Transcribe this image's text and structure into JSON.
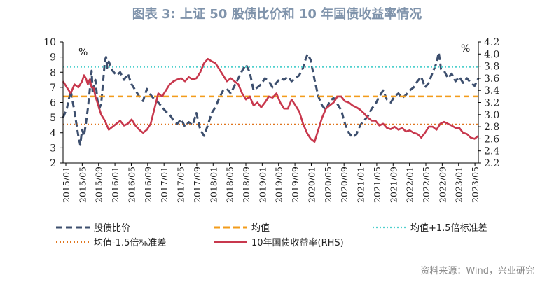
{
  "chart_data": {
    "type": "line",
    "title": "图表 3:  上证 50 股债比价和 10 年国债收益率情况",
    "left_axis_unit": "%",
    "right_axis_unit": "%",
    "left_ylim": [
      2,
      10
    ],
    "left_ticks": [
      "2",
      "3",
      "4",
      "5",
      "6",
      "7",
      "8",
      "9",
      "10"
    ],
    "right_ylim": [
      2.2,
      4.2
    ],
    "right_ticks": [
      "2.2",
      "2.4",
      "2.6",
      "2.8",
      "3.0",
      "3.2",
      "3.4",
      "3.6",
      "3.8",
      "4.0",
      "4.2"
    ],
    "x_ticks": [
      "2015/01",
      "2015/05",
      "2015/09",
      "2016/01",
      "2016/05",
      "2016/09",
      "2017/01",
      "2017/05",
      "2017/09",
      "2018/01",
      "2018/05",
      "2018/09",
      "2019/01",
      "2019/05",
      "2019/09",
      "2020/01",
      "2020/05",
      "2020/09",
      "2021/01",
      "2021/05",
      "2021/09",
      "2022/01",
      "2022/05",
      "2022/09",
      "2023/01",
      "2023/05"
    ],
    "source": "资料来源：Wind，兴业研究",
    "series": [
      {
        "name": "股债比价",
        "axis": "left",
        "style": "dashed",
        "color": "#3d4f6e",
        "points": [
          [
            0,
            5.0
          ],
          [
            1,
            5.6
          ],
          [
            2,
            6.8
          ],
          [
            3,
            5.4
          ],
          [
            4,
            3.8
          ],
          [
            4.5,
            3.2
          ],
          [
            5,
            4.2
          ],
          [
            5.5,
            3.8
          ],
          [
            6,
            4.6
          ],
          [
            6.5,
            5.6
          ],
          [
            7,
            6.8
          ],
          [
            7.5,
            8.1
          ],
          [
            7.8,
            6.6
          ],
          [
            8,
            7.0
          ],
          [
            8.5,
            7.5
          ],
          [
            9,
            6.2
          ],
          [
            9.5,
            5.6
          ],
          [
            10,
            5.9
          ],
          [
            10.5,
            7.3
          ],
          [
            11,
            8.8
          ],
          [
            11.3,
            9.0
          ],
          [
            11.6,
            8.3
          ],
          [
            12,
            8.7
          ],
          [
            13,
            8.1
          ],
          [
            14,
            7.8
          ],
          [
            15,
            8.0
          ],
          [
            16,
            7.5
          ],
          [
            17,
            7.9
          ],
          [
            18,
            7.2
          ],
          [
            19,
            6.8
          ],
          [
            20,
            6.4
          ],
          [
            21,
            6.1
          ],
          [
            22,
            6.9
          ],
          [
            23,
            6.5
          ],
          [
            24,
            6.2
          ],
          [
            25,
            6.0
          ],
          [
            26,
            5.7
          ],
          [
            27,
            5.4
          ],
          [
            28,
            5.2
          ],
          [
            29,
            4.8
          ],
          [
            30,
            4.6
          ],
          [
            31,
            4.9
          ],
          [
            32,
            4.4
          ],
          [
            33,
            4.7
          ],
          [
            34,
            4.5
          ],
          [
            35,
            5.3
          ],
          [
            36,
            4.2
          ],
          [
            37,
            3.8
          ],
          [
            38,
            4.5
          ],
          [
            39,
            5.3
          ],
          [
            40,
            5.7
          ],
          [
            41,
            6.3
          ],
          [
            42,
            6.8
          ],
          [
            43,
            6.9
          ],
          [
            44,
            6.6
          ],
          [
            45,
            7.1
          ],
          [
            46,
            7.6
          ],
          [
            47,
            8.1
          ],
          [
            48,
            8.5
          ],
          [
            49,
            8.0
          ],
          [
            50,
            6.8
          ],
          [
            51,
            7.0
          ],
          [
            52,
            7.2
          ],
          [
            53,
            7.6
          ],
          [
            54,
            7.4
          ],
          [
            55,
            7.0
          ],
          [
            56,
            7.3
          ],
          [
            57,
            7.6
          ],
          [
            58,
            7.5
          ],
          [
            59,
            7.7
          ],
          [
            60,
            7.4
          ],
          [
            61,
            7.6
          ],
          [
            62,
            7.8
          ],
          [
            63,
            8.3
          ],
          [
            63.7,
            8.9
          ],
          [
            64.2,
            9.2
          ],
          [
            65,
            8.8
          ],
          [
            66,
            7.5
          ],
          [
            67,
            6.4
          ],
          [
            68,
            5.8
          ],
          [
            69,
            5.5
          ],
          [
            70,
            6.1
          ],
          [
            71,
            6.3
          ],
          [
            72,
            5.9
          ],
          [
            73,
            5.5
          ],
          [
            74,
            4.6
          ],
          [
            75,
            4.0
          ],
          [
            76,
            3.7
          ],
          [
            77,
            3.9
          ],
          [
            78,
            4.5
          ],
          [
            79,
            4.8
          ],
          [
            80,
            5.1
          ],
          [
            81,
            5.6
          ],
          [
            82,
            5.9
          ],
          [
            83,
            6.4
          ],
          [
            84,
            6.8
          ],
          [
            85,
            6.2
          ],
          [
            86,
            6.0
          ],
          [
            87,
            6.4
          ],
          [
            88,
            6.6
          ],
          [
            89,
            6.3
          ],
          [
            90,
            6.5
          ],
          [
            91,
            6.8
          ],
          [
            92,
            7.0
          ],
          [
            93,
            7.4
          ],
          [
            94,
            7.7
          ],
          [
            95,
            7.0
          ],
          [
            96,
            7.3
          ],
          [
            97,
            8.0
          ],
          [
            98,
            8.6
          ],
          [
            98.6,
            9.3
          ],
          [
            99.2,
            8.2
          ],
          [
            100,
            8.1
          ],
          [
            101,
            7.6
          ],
          [
            102,
            7.9
          ],
          [
            103,
            7.4
          ],
          [
            104,
            7.7
          ],
          [
            105,
            7.3
          ],
          [
            106,
            7.6
          ],
          [
            107,
            7.3
          ],
          [
            108,
            7.1
          ],
          [
            109,
            7.6
          ]
        ]
      },
      {
        "name": "均值",
        "axis": "left",
        "style": "dashed",
        "color": "#f39c1b",
        "constant": 6.4
      },
      {
        "name": "均值+1.5倍标准差",
        "axis": "left",
        "style": "dotted",
        "color": "#4fd0cd",
        "constant": 8.35
      },
      {
        "name": "均值-1.5倍标准差",
        "axis": "left",
        "style": "dotted",
        "color": "#e0761f",
        "constant": 4.55
      },
      {
        "name": "10年国债收益率(RHS)",
        "axis": "right",
        "style": "solid",
        "color": "#c8384d",
        "points": [
          [
            0,
            3.55
          ],
          [
            1,
            3.45
          ],
          [
            2,
            3.35
          ],
          [
            3,
            3.5
          ],
          [
            4,
            3.45
          ],
          [
            5,
            3.55
          ],
          [
            5.5,
            3.65
          ],
          [
            6,
            3.6
          ],
          [
            6.5,
            3.5
          ],
          [
            7,
            3.58
          ],
          [
            7.5,
            3.45
          ],
          [
            8,
            3.45
          ],
          [
            8.5,
            3.3
          ],
          [
            9,
            3.2
          ],
          [
            10,
            3.0
          ],
          [
            11,
            2.9
          ],
          [
            12,
            2.75
          ],
          [
            13,
            2.8
          ],
          [
            14,
            2.85
          ],
          [
            15,
            2.9
          ],
          [
            16,
            2.82
          ],
          [
            17,
            2.85
          ],
          [
            18,
            2.92
          ],
          [
            19,
            2.82
          ],
          [
            20,
            2.75
          ],
          [
            21,
            2.7
          ],
          [
            22,
            2.75
          ],
          [
            23,
            2.85
          ],
          [
            24,
            3.1
          ],
          [
            25,
            3.35
          ],
          [
            26,
            3.3
          ],
          [
            27,
            3.4
          ],
          [
            28,
            3.5
          ],
          [
            29,
            3.55
          ],
          [
            30,
            3.58
          ],
          [
            31,
            3.6
          ],
          [
            32,
            3.55
          ],
          [
            33,
            3.62
          ],
          [
            34,
            3.58
          ],
          [
            35,
            3.6
          ],
          [
            36,
            3.7
          ],
          [
            37,
            3.85
          ],
          [
            38,
            3.92
          ],
          [
            39,
            3.88
          ],
          [
            40,
            3.85
          ],
          [
            41,
            3.75
          ],
          [
            42,
            3.65
          ],
          [
            43,
            3.55
          ],
          [
            44,
            3.6
          ],
          [
            45,
            3.55
          ],
          [
            46,
            3.5
          ],
          [
            47,
            3.35
          ],
          [
            48,
            3.25
          ],
          [
            49,
            3.3
          ],
          [
            50,
            3.15
          ],
          [
            51,
            3.2
          ],
          [
            52,
            3.12
          ],
          [
            53,
            3.2
          ],
          [
            54,
            3.3
          ],
          [
            55,
            3.28
          ],
          [
            56,
            3.35
          ],
          [
            57,
            3.2
          ],
          [
            58,
            3.1
          ],
          [
            59,
            3.1
          ],
          [
            60,
            3.25
          ],
          [
            61,
            3.15
          ],
          [
            62,
            3.05
          ],
          [
            63,
            2.85
          ],
          [
            64,
            2.7
          ],
          [
            65,
            2.6
          ],
          [
            66,
            2.55
          ],
          [
            67,
            2.75
          ],
          [
            68,
            2.95
          ],
          [
            69,
            3.1
          ],
          [
            70,
            3.15
          ],
          [
            71,
            3.2
          ],
          [
            72,
            3.3
          ],
          [
            73,
            3.3
          ],
          [
            74,
            3.22
          ],
          [
            75,
            3.2
          ],
          [
            76,
            3.15
          ],
          [
            77,
            3.12
          ],
          [
            78,
            3.08
          ],
          [
            79,
            3.02
          ],
          [
            80,
            2.95
          ],
          [
            81,
            2.9
          ],
          [
            82,
            2.9
          ],
          [
            83,
            2.82
          ],
          [
            84,
            2.85
          ],
          [
            85,
            2.78
          ],
          [
            86,
            2.76
          ],
          [
            87,
            2.8
          ],
          [
            88,
            2.75
          ],
          [
            89,
            2.78
          ],
          [
            90,
            2.72
          ],
          [
            91,
            2.74
          ],
          [
            92,
            2.7
          ],
          [
            93,
            2.68
          ],
          [
            94,
            2.62
          ],
          [
            95,
            2.7
          ],
          [
            96,
            2.8
          ],
          [
            97,
            2.8
          ],
          [
            98,
            2.75
          ],
          [
            99,
            2.85
          ],
          [
            100,
            2.88
          ],
          [
            101,
            2.85
          ],
          [
            102,
            2.82
          ],
          [
            103,
            2.78
          ],
          [
            104,
            2.78
          ],
          [
            105,
            2.7
          ],
          [
            106,
            2.68
          ],
          [
            107,
            2.62
          ],
          [
            108,
            2.6
          ],
          [
            109,
            2.65
          ]
        ]
      }
    ]
  },
  "legend": [
    {
      "label": "股债比价",
      "style": "dashed",
      "color": "#3d4f6e"
    },
    {
      "label": "均值",
      "style": "dashed",
      "color": "#f39c1b"
    },
    {
      "label": "均值+1.5倍标准差",
      "style": "dotted",
      "color": "#4fd0cd"
    },
    {
      "label": "均值-1.5倍标准差",
      "style": "dotted",
      "color": "#e0761f"
    },
    {
      "label": "10年国债收益率(RHS)",
      "style": "solid",
      "color": "#c8384d"
    }
  ]
}
